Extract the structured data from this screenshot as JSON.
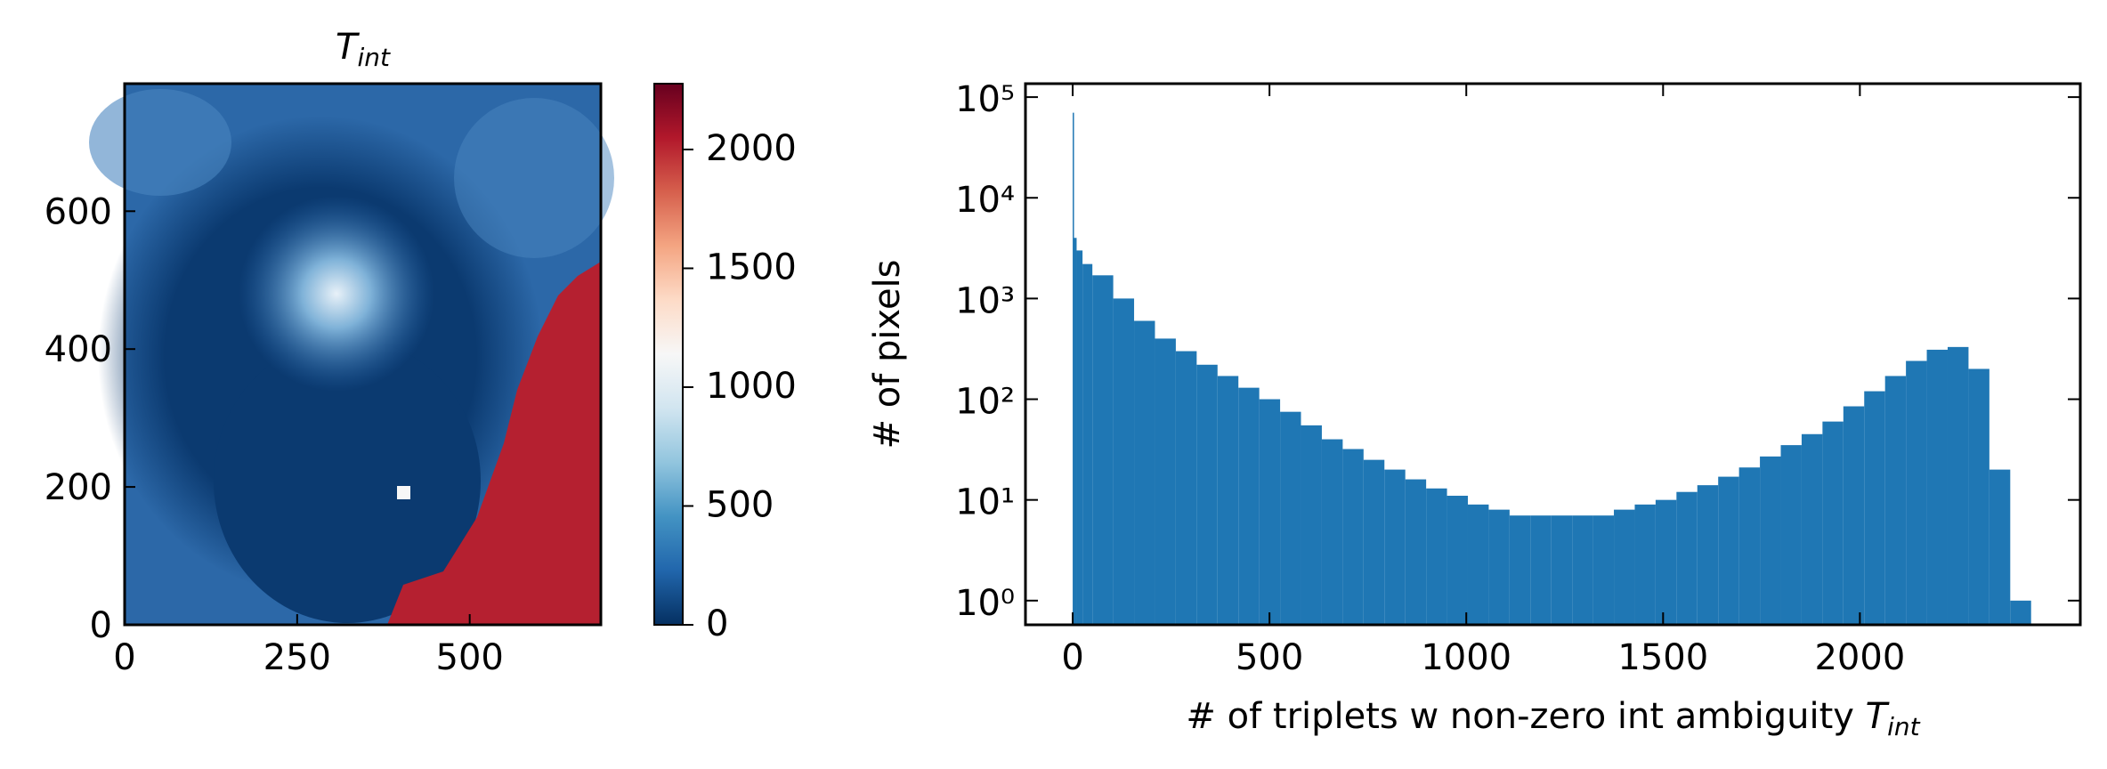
{
  "chart_data": [
    {
      "type": "image",
      "title": {
        "symbol": "T",
        "subscript": "int"
      },
      "xlim": [
        0,
        690
      ],
      "ylim": [
        0,
        785
      ],
      "xticks": [
        0,
        250,
        500
      ],
      "yticks": [
        0,
        200,
        400,
        600
      ],
      "colormap": "RdBu_r",
      "clim": [
        0,
        2277
      ],
      "cticks": [
        0,
        500,
        1000,
        1500,
        2000
      ]
    },
    {
      "type": "histogram",
      "color": "#1f77b4",
      "log_y": true,
      "bins": [
        0,
        2,
        10,
        25,
        50,
        103,
        156,
        209,
        262,
        315,
        368,
        421,
        474,
        527,
        580,
        633,
        686,
        739,
        792,
        845,
        898,
        951,
        1004,
        1057,
        1110,
        1163,
        1216,
        1269,
        1322,
        1375,
        1428,
        1481,
        1534,
        1587,
        1640,
        1693,
        1746,
        1799,
        1852,
        1905,
        1958,
        2011,
        2064,
        2117,
        2170,
        2223,
        2276,
        2329,
        2382,
        2435
      ],
      "counts": [
        70000,
        4000,
        3000,
        2200,
        1700,
        1000,
        600,
        400,
        300,
        220,
        170,
        130,
        100,
        75,
        55,
        40,
        32,
        25,
        20,
        16,
        13,
        11,
        9,
        8,
        7,
        7,
        7,
        7,
        7,
        8,
        9,
        10,
        12,
        14,
        17,
        21,
        27,
        35,
        45,
        60,
        85,
        120,
        170,
        240,
        310,
        330,
        200,
        20,
        1
      ],
      "xlim": [
        -120,
        2560
      ],
      "ylim": [
        0.575,
        136000
      ],
      "xticks": [
        0,
        500,
        1000,
        1500,
        2000
      ],
      "yticks": [
        {
          "value": 1,
          "label": "10⁰"
        },
        {
          "value": 10,
          "label": "10¹"
        },
        {
          "value": 100,
          "label": "10²"
        },
        {
          "value": 1000,
          "label": "10³"
        },
        {
          "value": 10000,
          "label": "10⁴"
        },
        {
          "value": 100000,
          "label": "10⁵"
        }
      ],
      "xlabel": {
        "text": "# of triplets w non-zero int ambiguity ",
        "symbol": "T",
        "subscript": "int"
      },
      "ylabel": "# of pixels"
    }
  ]
}
